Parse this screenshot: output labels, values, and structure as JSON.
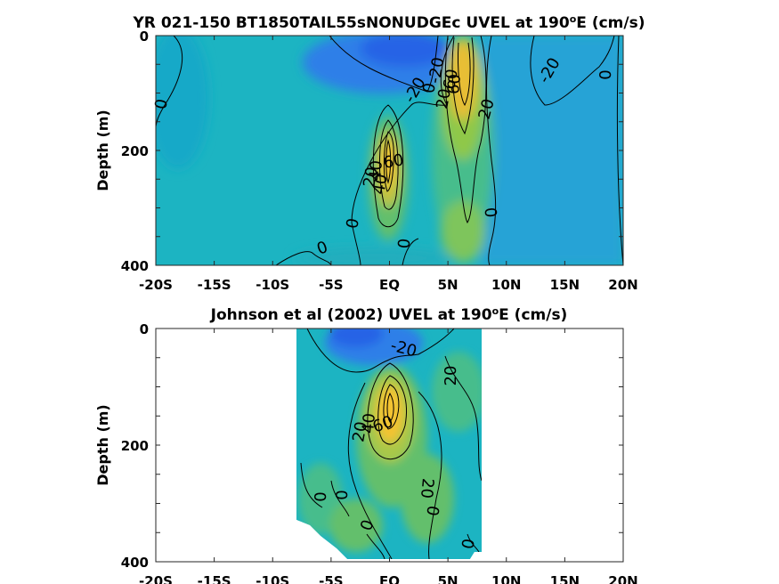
{
  "chart_data": [
    {
      "type": "heatmap",
      "title_main": "YR 021-150 BT1850TAIL55sNONUDGEc UVEL at 190",
      "title_sup": "o",
      "title_end": "E (cm/s)",
      "ylabel": "Depth (m)",
      "xlim": [
        -20,
        20
      ],
      "ylim": [
        0,
        400
      ],
      "x_tick_labels": [
        "-20S",
        "-15S",
        "-10S",
        "-5S",
        "EQ",
        "5N",
        "10N",
        "15N",
        "20N"
      ],
      "y_tick_labels": [
        "0",
        "200",
        "400"
      ],
      "contour_labels": [
        "0",
        "0",
        "0",
        "0",
        "0",
        "0",
        "0",
        "-20",
        "-20",
        "-20",
        "20",
        "20",
        "20",
        "40",
        "40",
        "60",
        "60",
        "60"
      ]
    },
    {
      "type": "heatmap",
      "title_main": "Johnson et al (2002) UVEL at 190",
      "title_sup": "o",
      "title_end": "E (cm/s)",
      "ylabel": "Depth (m)",
      "xlim": [
        -20,
        20
      ],
      "ylim": [
        0,
        400
      ],
      "data_extent_x": [
        -8,
        8
      ],
      "x_tick_labels": [
        "-20S",
        "-15S",
        "-10S",
        "-5S",
        "EQ",
        "5N",
        "10N",
        "15N",
        "20N"
      ],
      "y_tick_labels": [
        "0",
        "200",
        "400"
      ],
      "contour_labels": [
        "-20",
        "20",
        "20",
        "20",
        "40",
        "60",
        "0",
        "0",
        "0",
        "0",
        "0"
      ]
    }
  ],
  "colors": {
    "background_field": "#1cb4c2",
    "negative_flow": "#2f7fe8",
    "positive_flow": "#8fc84a",
    "jet_core": "#f3c330"
  }
}
